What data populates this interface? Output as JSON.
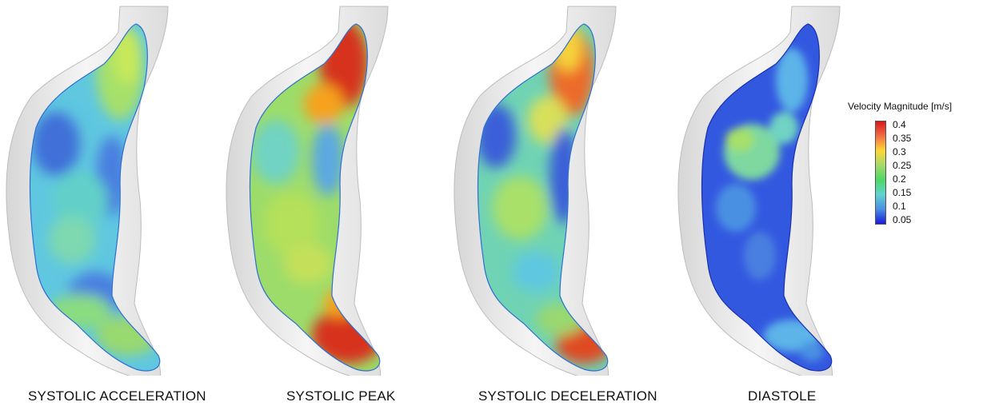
{
  "panels": [
    {
      "caption": "SYSTOLIC ACCELERATION",
      "phase": "acceleration"
    },
    {
      "caption": "SYSTOLIC PEAK",
      "phase": "peak"
    },
    {
      "caption": "SYSTOLIC DECELERATION",
      "phase": "deceleration"
    },
    {
      "caption": "DIASTOLE",
      "phase": "diastole"
    }
  ],
  "legend": {
    "title": "Velocity Magnitude [m/s]",
    "ticks": [
      "0.4",
      "0.35",
      "0.3",
      "0.25",
      "0.2",
      "0.15",
      "0.1",
      "0.05"
    ],
    "colors": [
      "#d7191c",
      "#f46d43",
      "#fdd835",
      "#a6d96a",
      "#4cd964",
      "#5fd3d0",
      "#4a90e2",
      "#1a1adb"
    ]
  }
}
